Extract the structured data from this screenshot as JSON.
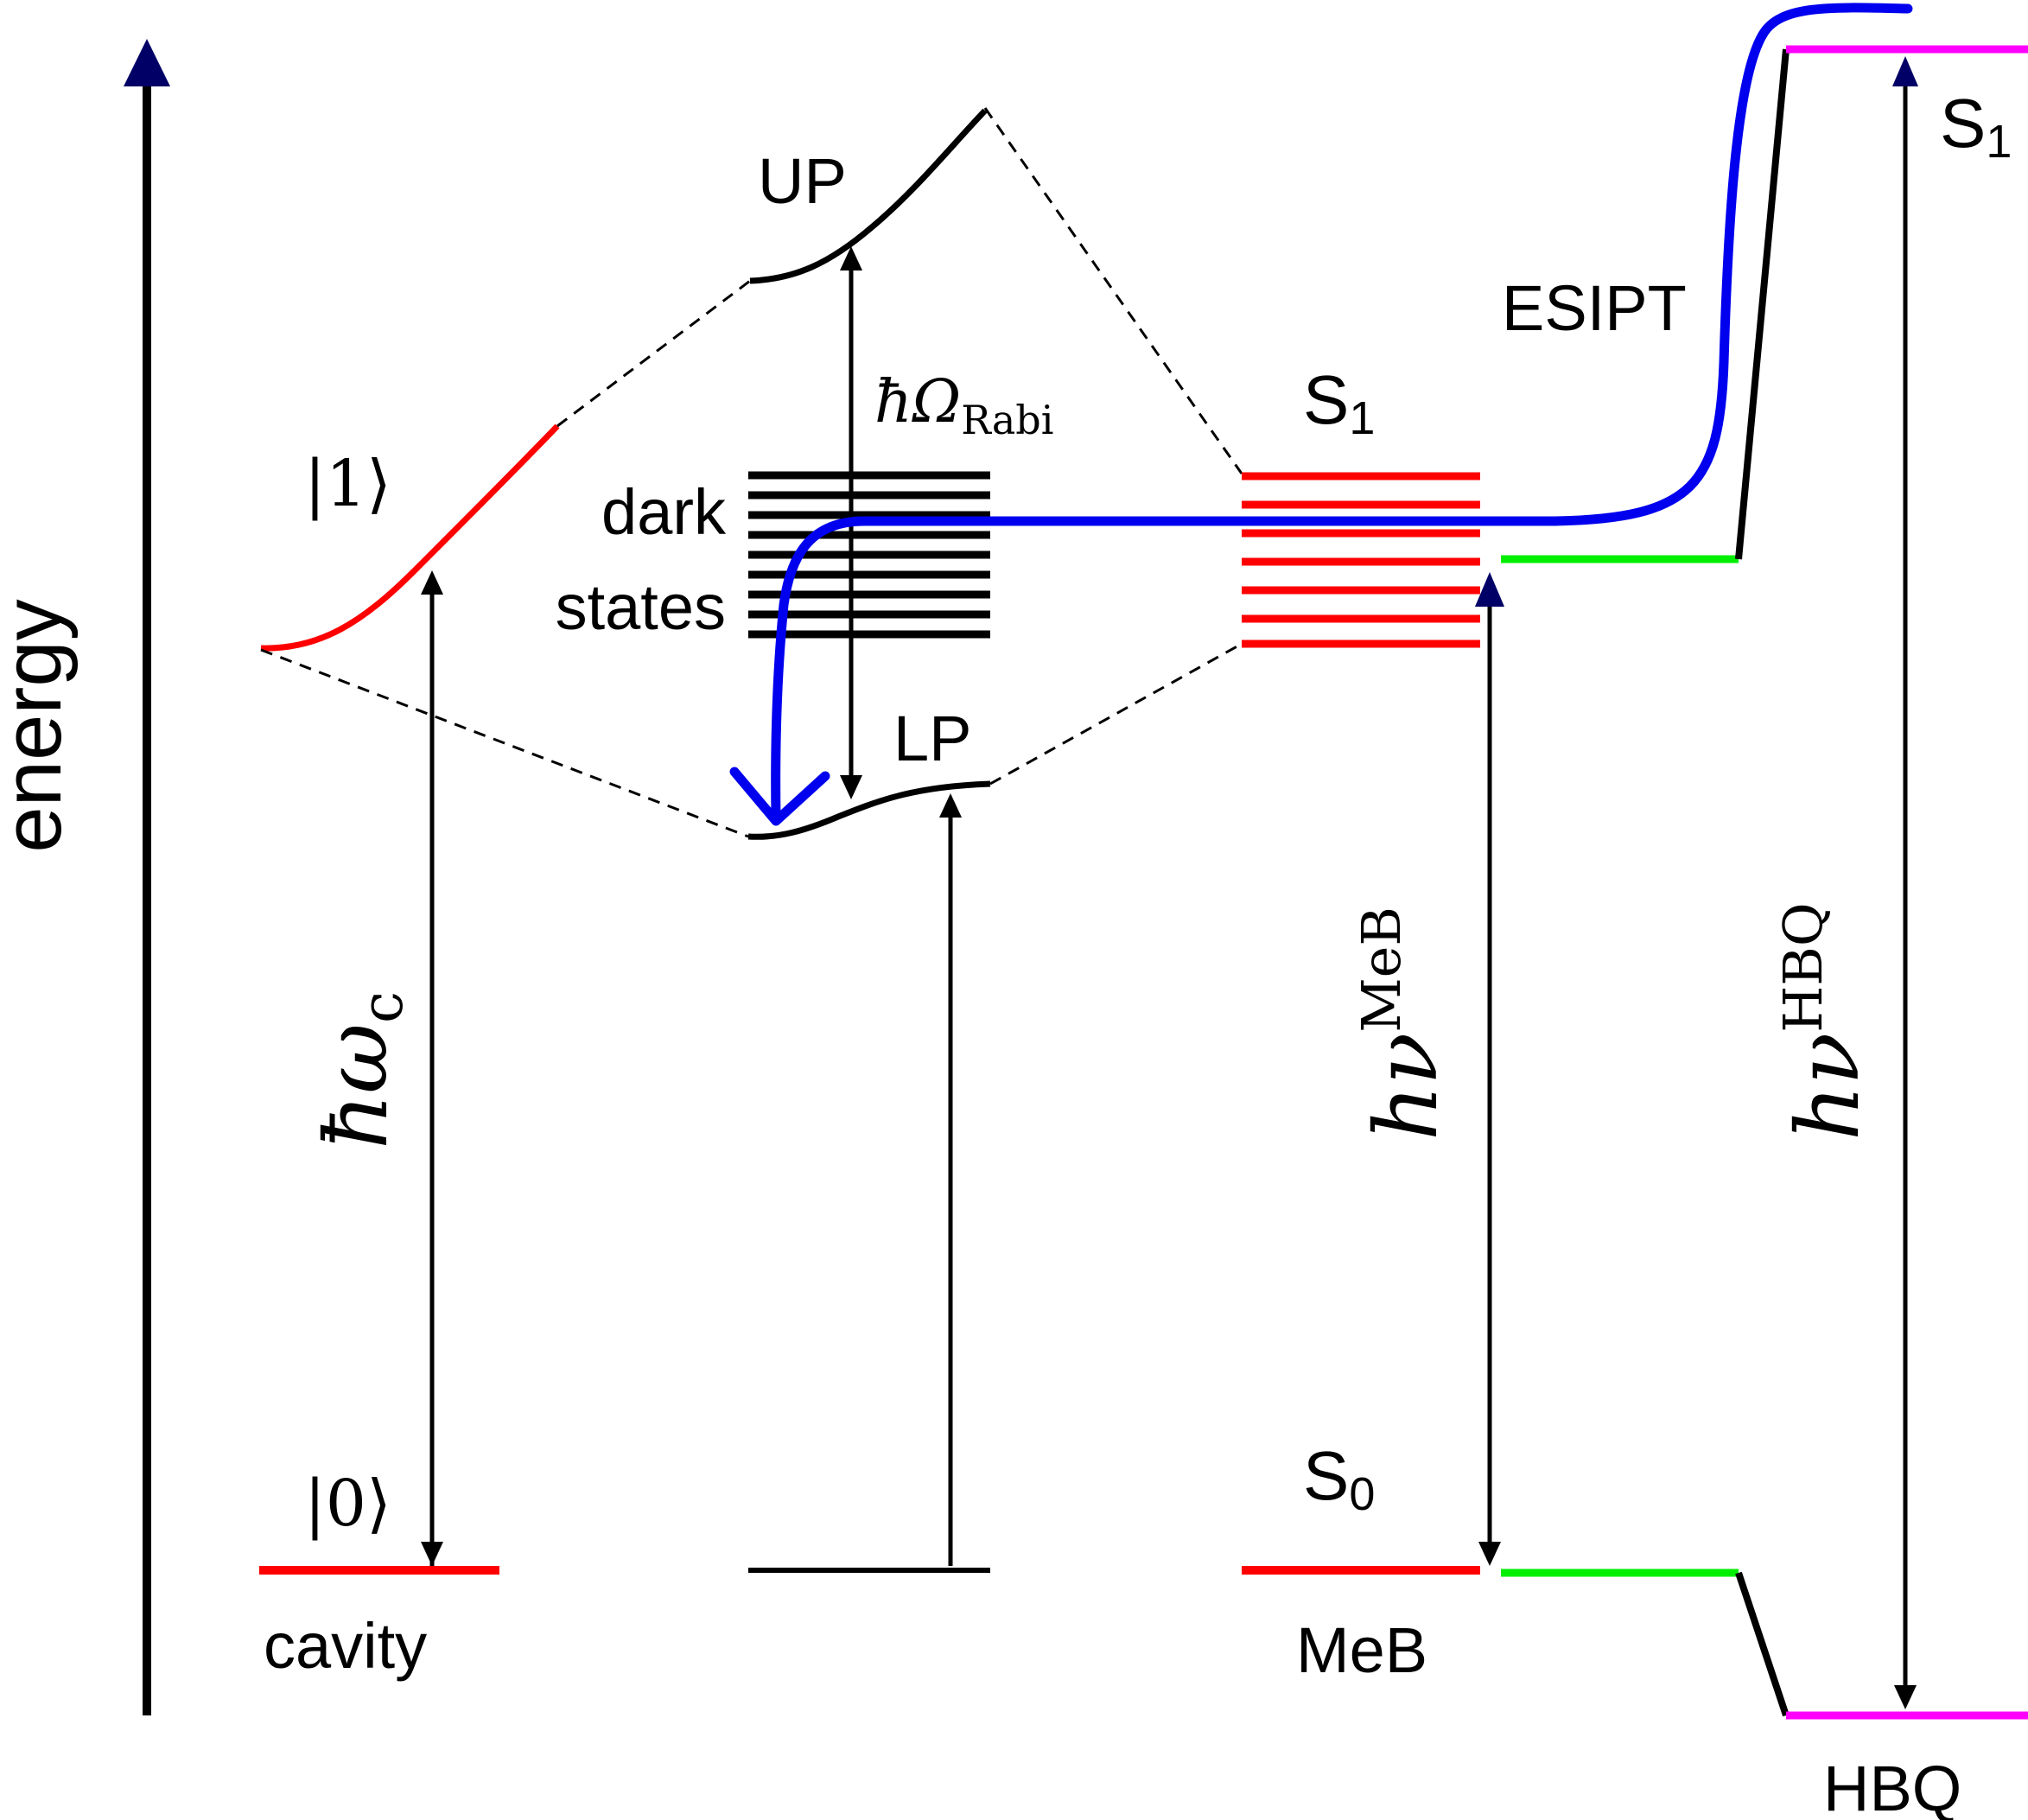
{
  "axis": {
    "label": "energy"
  },
  "cavity": {
    "label": "cavity",
    "ground_state": "|0⟩",
    "excited_state": "|1⟩",
    "transition": "ħω",
    "transition_sub": "c"
  },
  "polaritons": {
    "upper": "UP",
    "lower": "LP",
    "dark_line1": "dark",
    "dark_line2": "states",
    "rabi": "ħΩ",
    "rabi_sub": "Rabi"
  },
  "meb": {
    "label": "MeB",
    "s1": "S",
    "s1_sub": "1",
    "s0": "S",
    "s0_sub": "0",
    "transition": "hν",
    "transition_sup": "MeB"
  },
  "hbq": {
    "label": "HBQ",
    "s1": "S",
    "s1_sub": "1",
    "process": "ESIPT",
    "transition": "hν",
    "transition_sup": "HBQ"
  },
  "colors": {
    "cavity": "#ff0000",
    "meb": "#ff0000",
    "hbq": "#ff00ff",
    "esipt_green": "#00ee00",
    "arrow_blue": "#0000ee",
    "axis_arrowhead": "#000066",
    "line": "#000000"
  }
}
